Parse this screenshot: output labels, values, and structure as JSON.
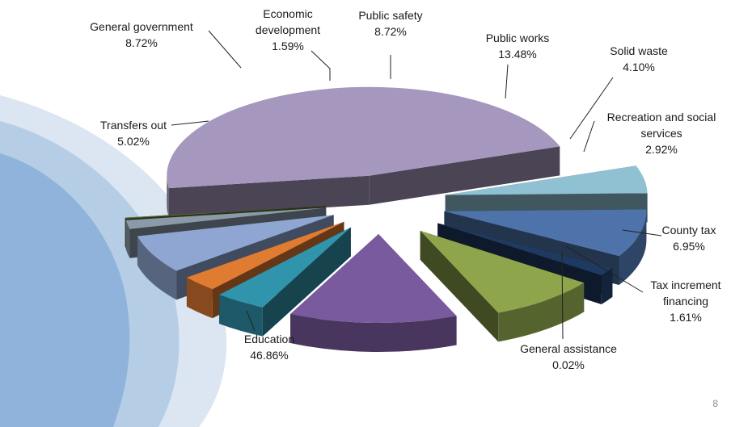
{
  "page_number": "8",
  "colors": {
    "swoosh_light": "#dbe6f2",
    "swoosh_mid": "#b6cde6",
    "swoosh_dark": "#8fb3db"
  },
  "chart_data": {
    "type": "pie",
    "style": "3d-exploded",
    "title": "",
    "legend": "none (labels beside slices)",
    "series": [
      {
        "name": "",
        "slices": [
          {
            "label": "Education",
            "value": 46.86,
            "display": "46.86%",
            "color": "#a597bd"
          },
          {
            "label": "Transfers out",
            "value": 5.02,
            "display": "5.02%",
            "color": "#8fc1d2"
          },
          {
            "label": "General government",
            "value": 8.72,
            "display": "8.72%",
            "color": "#4e73ab"
          },
          {
            "label": "Economic development",
            "value": 1.59,
            "display": "1.59%",
            "color": "#1f3a60"
          },
          {
            "label": "Public safety",
            "value": 8.72,
            "display": "8.72%",
            "color": "#8ea54c"
          },
          {
            "label": "Public works",
            "value": 13.48,
            "display": "13.48%",
            "color": "#7a5a9e"
          },
          {
            "label": "Solid waste",
            "value": 4.1,
            "display": "4.10%",
            "color": "#3194ad"
          },
          {
            "label": "Recreation and social services",
            "value": 2.92,
            "display": "2.92%",
            "color": "#e07b32"
          },
          {
            "label": "County tax",
            "value": 6.95,
            "display": "6.95%",
            "color": "#8fa6d2"
          },
          {
            "label": "Tax increment financing",
            "value": 1.61,
            "display": "1.61%",
            "color": "#8a9aa8"
          },
          {
            "label": "General assistance",
            "value": 0.02,
            "display": "0.02%",
            "color": "#5d7235"
          }
        ]
      }
    ]
  }
}
